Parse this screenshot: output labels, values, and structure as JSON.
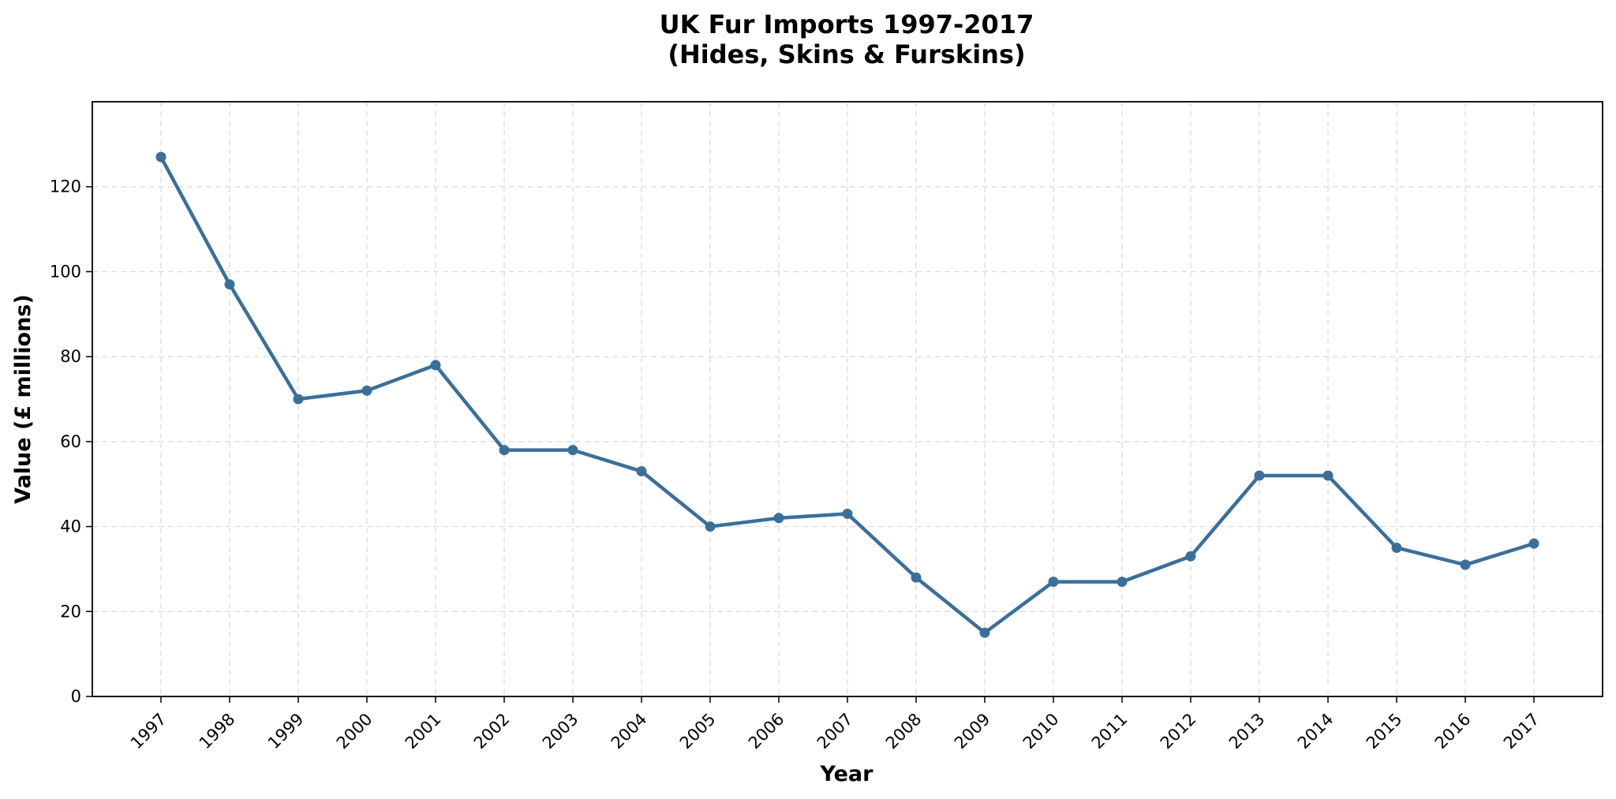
{
  "chart_data": {
    "type": "line",
    "title_line1": "UK Fur Imports 1997-2017",
    "title_line2": "(Hides, Skins & Furskins)",
    "xlabel": "Year",
    "ylabel": "Value (£ millions)",
    "x": [
      "1997",
      "1998",
      "1999",
      "2000",
      "2001",
      "2002",
      "2003",
      "2004",
      "2005",
      "2006",
      "2007",
      "2008",
      "2009",
      "2010",
      "2011",
      "2012",
      "2013",
      "2014",
      "2015",
      "2016",
      "2017"
    ],
    "series": [
      {
        "values": [
          127,
          97,
          70,
          72,
          78,
          58,
          58,
          53,
          40,
          42,
          43,
          28,
          15,
          27,
          27,
          33,
          52,
          52,
          35,
          31,
          36
        ]
      }
    ],
    "ylim": [
      0,
      140
    ],
    "yticks": [
      0,
      20,
      40,
      60,
      80,
      100,
      120
    ],
    "grid": true,
    "line_color": "#3a6f9a"
  }
}
